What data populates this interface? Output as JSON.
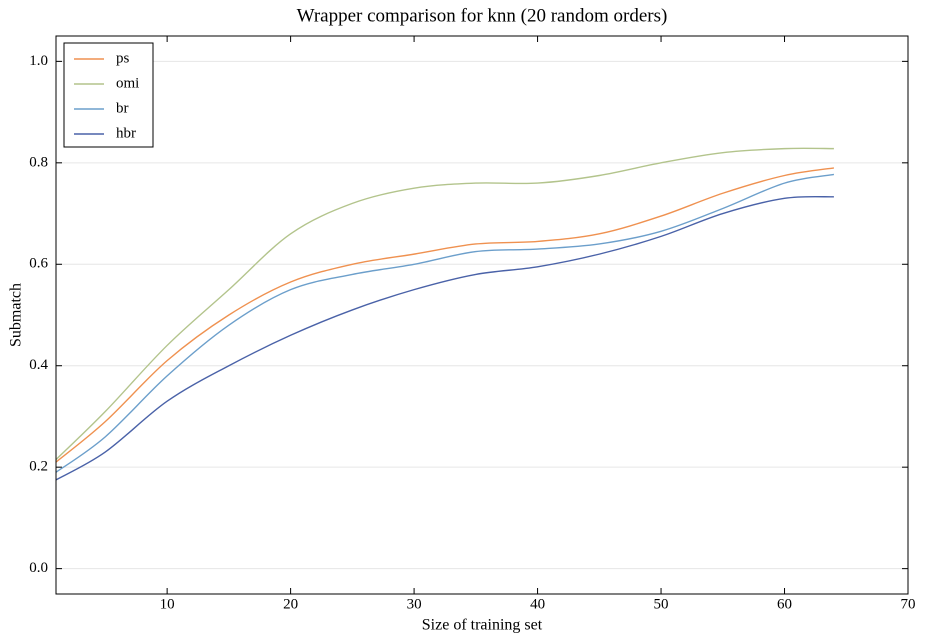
{
  "chart_data": {
    "type": "line",
    "title": "Wrapper comparison for knn (20 random orders)",
    "x_label": "Size of training set",
    "y_label": "Submatch",
    "x": [
      1,
      5,
      10,
      15,
      20,
      25,
      30,
      35,
      40,
      45,
      50,
      55,
      60,
      64
    ],
    "series": [
      {
        "name": "ps",
        "color": "#ef9150",
        "values": [
          0.21,
          0.29,
          0.41,
          0.5,
          0.565,
          0.6,
          0.62,
          0.64,
          0.645,
          0.66,
          0.695,
          0.74,
          0.775,
          0.79
        ]
      },
      {
        "name": "omi",
        "color": "#b3c48c",
        "values": [
          0.215,
          0.31,
          0.44,
          0.55,
          0.66,
          0.72,
          0.75,
          0.76,
          0.76,
          0.775,
          0.8,
          0.82,
          0.828,
          0.828
        ]
      },
      {
        "name": "br",
        "color": "#6c9fcb",
        "values": [
          0.19,
          0.26,
          0.38,
          0.48,
          0.55,
          0.58,
          0.6,
          0.625,
          0.63,
          0.64,
          0.665,
          0.71,
          0.76,
          0.777
        ]
      },
      {
        "name": "hbr",
        "color": "#4a62a8",
        "values": [
          0.175,
          0.23,
          0.33,
          0.4,
          0.46,
          0.51,
          0.55,
          0.58,
          0.595,
          0.62,
          0.655,
          0.7,
          0.73,
          0.733
        ]
      }
    ],
    "xlim": [
      1,
      70
    ],
    "xticks": [
      10,
      20,
      30,
      40,
      50,
      60,
      70
    ],
    "ylim": [
      -0.05,
      1.05
    ],
    "yticks": [
      {
        "value": 0,
        "label": "0.0"
      },
      0.2,
      0.4,
      0.6,
      0.8,
      {
        "value": 1,
        "label": "1.0"
      }
    ],
    "grid": true,
    "legend": "upper-left"
  }
}
